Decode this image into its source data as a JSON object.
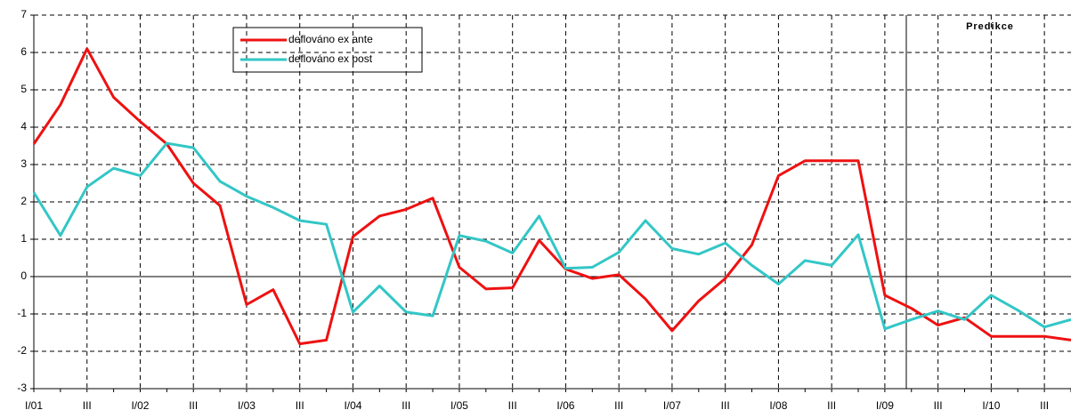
{
  "chart_data": {
    "type": "line",
    "annotation": "Predikce",
    "categories": [
      "I/01",
      null,
      "III",
      null,
      "I/02",
      null,
      "III",
      null,
      "I/03",
      null,
      "III",
      null,
      "I/04",
      null,
      "III",
      null,
      "I/05",
      null,
      "III",
      null,
      "I/06",
      null,
      "III",
      null,
      "I/07",
      null,
      "III",
      null,
      "I/08",
      null,
      "III",
      null,
      "I/09",
      null,
      "III",
      null,
      "I/10",
      null,
      "III",
      null
    ],
    "series": [
      {
        "name": "deflováno ex ante",
        "color": "#ee1111",
        "values": [
          3.55,
          4.6,
          6.1,
          4.8,
          4.15,
          3.55,
          2.5,
          1.9,
          -0.75,
          -0.35,
          -1.8,
          -1.7,
          1.07,
          1.62,
          1.8,
          2.1,
          0.25,
          -0.33,
          -0.3,
          0.97,
          0.2,
          -0.05,
          0.05,
          -0.6,
          -1.45,
          -0.65,
          -0.05,
          0.85,
          2.7,
          3.1,
          3.1,
          3.1,
          -0.5,
          -0.85,
          -1.3,
          -1.1,
          -1.6,
          -1.6,
          -1.6,
          -1.7
        ]
      },
      {
        "name": "deflováno ex post",
        "color": "#33c6c6",
        "values": [
          2.25,
          1.1,
          2.4,
          2.9,
          2.7,
          3.57,
          3.45,
          2.55,
          2.15,
          1.85,
          1.5,
          1.4,
          -0.95,
          -0.25,
          -0.95,
          -1.05,
          1.1,
          0.95,
          0.63,
          1.62,
          0.22,
          0.25,
          0.65,
          1.5,
          0.75,
          0.6,
          0.9,
          0.3,
          -0.2,
          0.43,
          0.3,
          1.12,
          -1.4,
          -1.15,
          -0.92,
          -1.15,
          -0.5,
          -0.9,
          -1.35,
          -1.15
        ]
      }
    ],
    "ylim": [
      -3,
      7
    ],
    "yticks": [
      -3,
      -2,
      -1,
      0,
      1,
      2,
      3,
      4,
      5,
      6,
      7
    ],
    "grid": true
  }
}
